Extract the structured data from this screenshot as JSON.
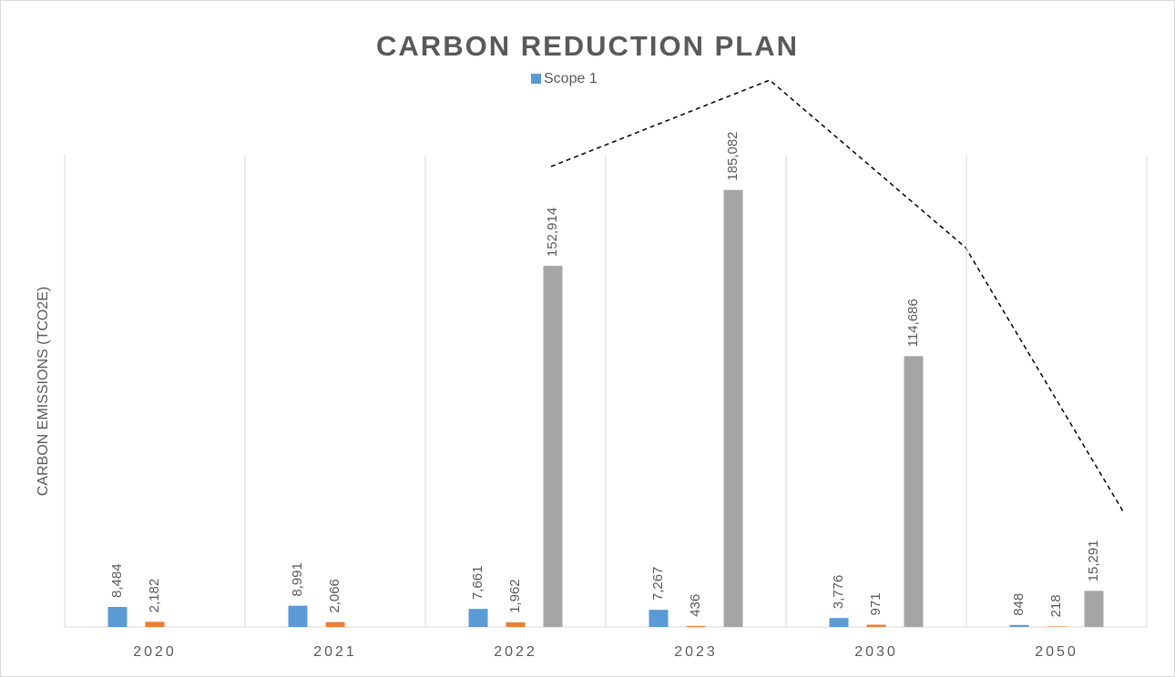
{
  "chart_data": {
    "type": "bar",
    "title": "CARBON REDUCTION PLAN",
    "y_label": "CARBON EMISSIONS (TCO2E)",
    "categories": [
      "2020",
      "2021",
      "2022",
      "2023",
      "2030",
      "2050"
    ],
    "series": [
      {
        "name": "Scope 1",
        "color": "#5b9bd5",
        "values": [
          8484,
          8991,
          7661,
          7267,
          3776,
          848
        ],
        "value_labels": [
          "8,484",
          "8,991",
          "7,661",
          "7,267",
          "3,776",
          "848"
        ]
      },
      {
        "color": "#ed7d31",
        "values": [
          2182,
          2066,
          1962,
          436,
          971,
          218
        ],
        "value_labels": [
          "2,182",
          "2,066",
          "1,962",
          "436",
          "971",
          "218"
        ]
      },
      {
        "color": "#a5a5a5",
        "values": [
          null,
          null,
          152914,
          185082,
          114686,
          15291
        ],
        "value_labels": [
          null,
          null,
          "152,914",
          "185,082",
          "114,686",
          "15,291"
        ]
      }
    ],
    "ylim": [
      0,
      200000
    ],
    "yticks": [],
    "grid": true
  }
}
